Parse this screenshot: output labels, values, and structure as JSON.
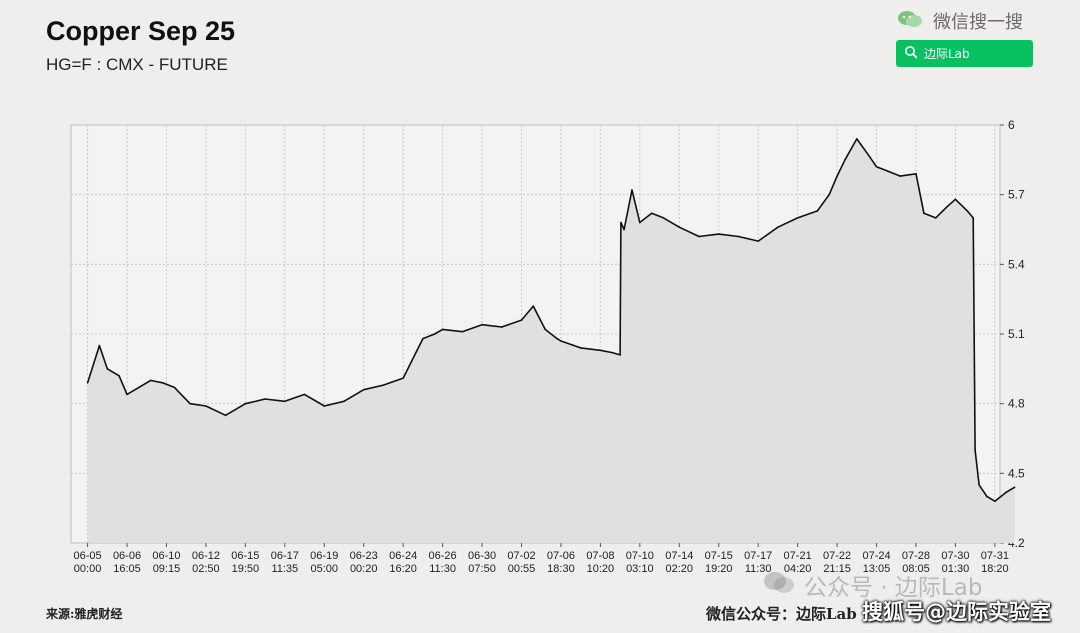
{
  "header": {
    "title": "Copper Sep 25",
    "subtitle": "HG=F : CMX - FUTURE"
  },
  "wechat": {
    "brand_text": "微信搜一搜",
    "search_button_label": "边际Lab",
    "accent_color": "#07c160"
  },
  "footer": {
    "source": "来源:雅虎财经",
    "account": "微信公众号：边际Lab"
  },
  "watermarks": {
    "primary": "公众号 · 边际Lab",
    "secondary": "搜狐号@边际实验室"
  },
  "chart_data": {
    "type": "area",
    "title": "Copper Sep 25",
    "subtitle": "HG=F : CMX - FUTURE",
    "xlabel": "",
    "ylabel": "",
    "ylim": [
      4.2,
      6.0
    ],
    "yticks": [
      "6",
      "5.7",
      "5.4",
      "5.1",
      "4.8",
      "4.5",
      "4.2"
    ],
    "y_axis_side": "right",
    "grid": true,
    "xticks": [
      [
        "06-05",
        "00:00"
      ],
      [
        "06-06",
        "16:05"
      ],
      [
        "06-10",
        "09:15"
      ],
      [
        "06-12",
        "02:50"
      ],
      [
        "06-15",
        "19:50"
      ],
      [
        "06-17",
        "11:35"
      ],
      [
        "06-19",
        "05:00"
      ],
      [
        "06-23",
        "00:20"
      ],
      [
        "06-24",
        "16:20"
      ],
      [
        "06-26",
        "11:30"
      ],
      [
        "06-30",
        "07:50"
      ],
      [
        "07-02",
        "00:55"
      ],
      [
        "07-06",
        "18:30"
      ],
      [
        "07-08",
        "10:20"
      ],
      [
        "07-10",
        "03:10"
      ],
      [
        "07-14",
        "02:20"
      ],
      [
        "07-15",
        "19:20"
      ],
      [
        "07-17",
        "11:30"
      ],
      [
        "07-21",
        "04:20"
      ],
      [
        "07-22",
        "21:15"
      ],
      [
        "07-24",
        "13:05"
      ],
      [
        "07-28",
        "08:05"
      ],
      [
        "07-30",
        "01:30"
      ],
      [
        "07-31",
        "18:20"
      ]
    ],
    "series": [
      {
        "color": "#111111",
        "fill": "#e0e0e0",
        "x": [
          0,
          0.3,
          0.5,
          0.8,
          1.0,
          1.3,
          1.6,
          1.9,
          2.2,
          2.6,
          3.0,
          3.5,
          4.0,
          4.5,
          5.0,
          5.5,
          6.0,
          6.5,
          7.0,
          7.5,
          8.0,
          8.5,
          8.8,
          9.0,
          9.5,
          10.0,
          10.5,
          11.0,
          11.3,
          11.6,
          11.9,
          12.0,
          12.5,
          13.0,
          13.3,
          13.5,
          13.52,
          13.6,
          13.8,
          14.0,
          14.3,
          14.6,
          15.0,
          15.5,
          16.0,
          16.5,
          17.0,
          17.5,
          18.0,
          18.5,
          18.8,
          19.0,
          19.2,
          19.5,
          19.8,
          20.0,
          20.3,
          20.6,
          21.0,
          21.2,
          21.5,
          21.8,
          22.0,
          22.3,
          22.45,
          22.5,
          22.6,
          22.8,
          23.0,
          23.3,
          23.5
        ],
        "y": [
          4.89,
          5.05,
          4.95,
          4.92,
          4.84,
          4.87,
          4.9,
          4.89,
          4.87,
          4.8,
          4.79,
          4.75,
          4.8,
          4.82,
          4.81,
          4.84,
          4.79,
          4.81,
          4.86,
          4.88,
          4.91,
          5.08,
          5.1,
          5.12,
          5.11,
          5.14,
          5.13,
          5.16,
          5.22,
          5.12,
          5.08,
          5.07,
          5.04,
          5.03,
          5.02,
          5.01,
          5.58,
          5.55,
          5.72,
          5.58,
          5.62,
          5.6,
          5.56,
          5.52,
          5.53,
          5.52,
          5.5,
          5.56,
          5.6,
          5.63,
          5.7,
          5.78,
          5.85,
          5.94,
          5.87,
          5.82,
          5.8,
          5.78,
          5.79,
          5.62,
          5.6,
          5.65,
          5.68,
          5.63,
          5.6,
          4.6,
          4.45,
          4.4,
          4.38,
          4.42,
          4.44
        ]
      }
    ]
  }
}
